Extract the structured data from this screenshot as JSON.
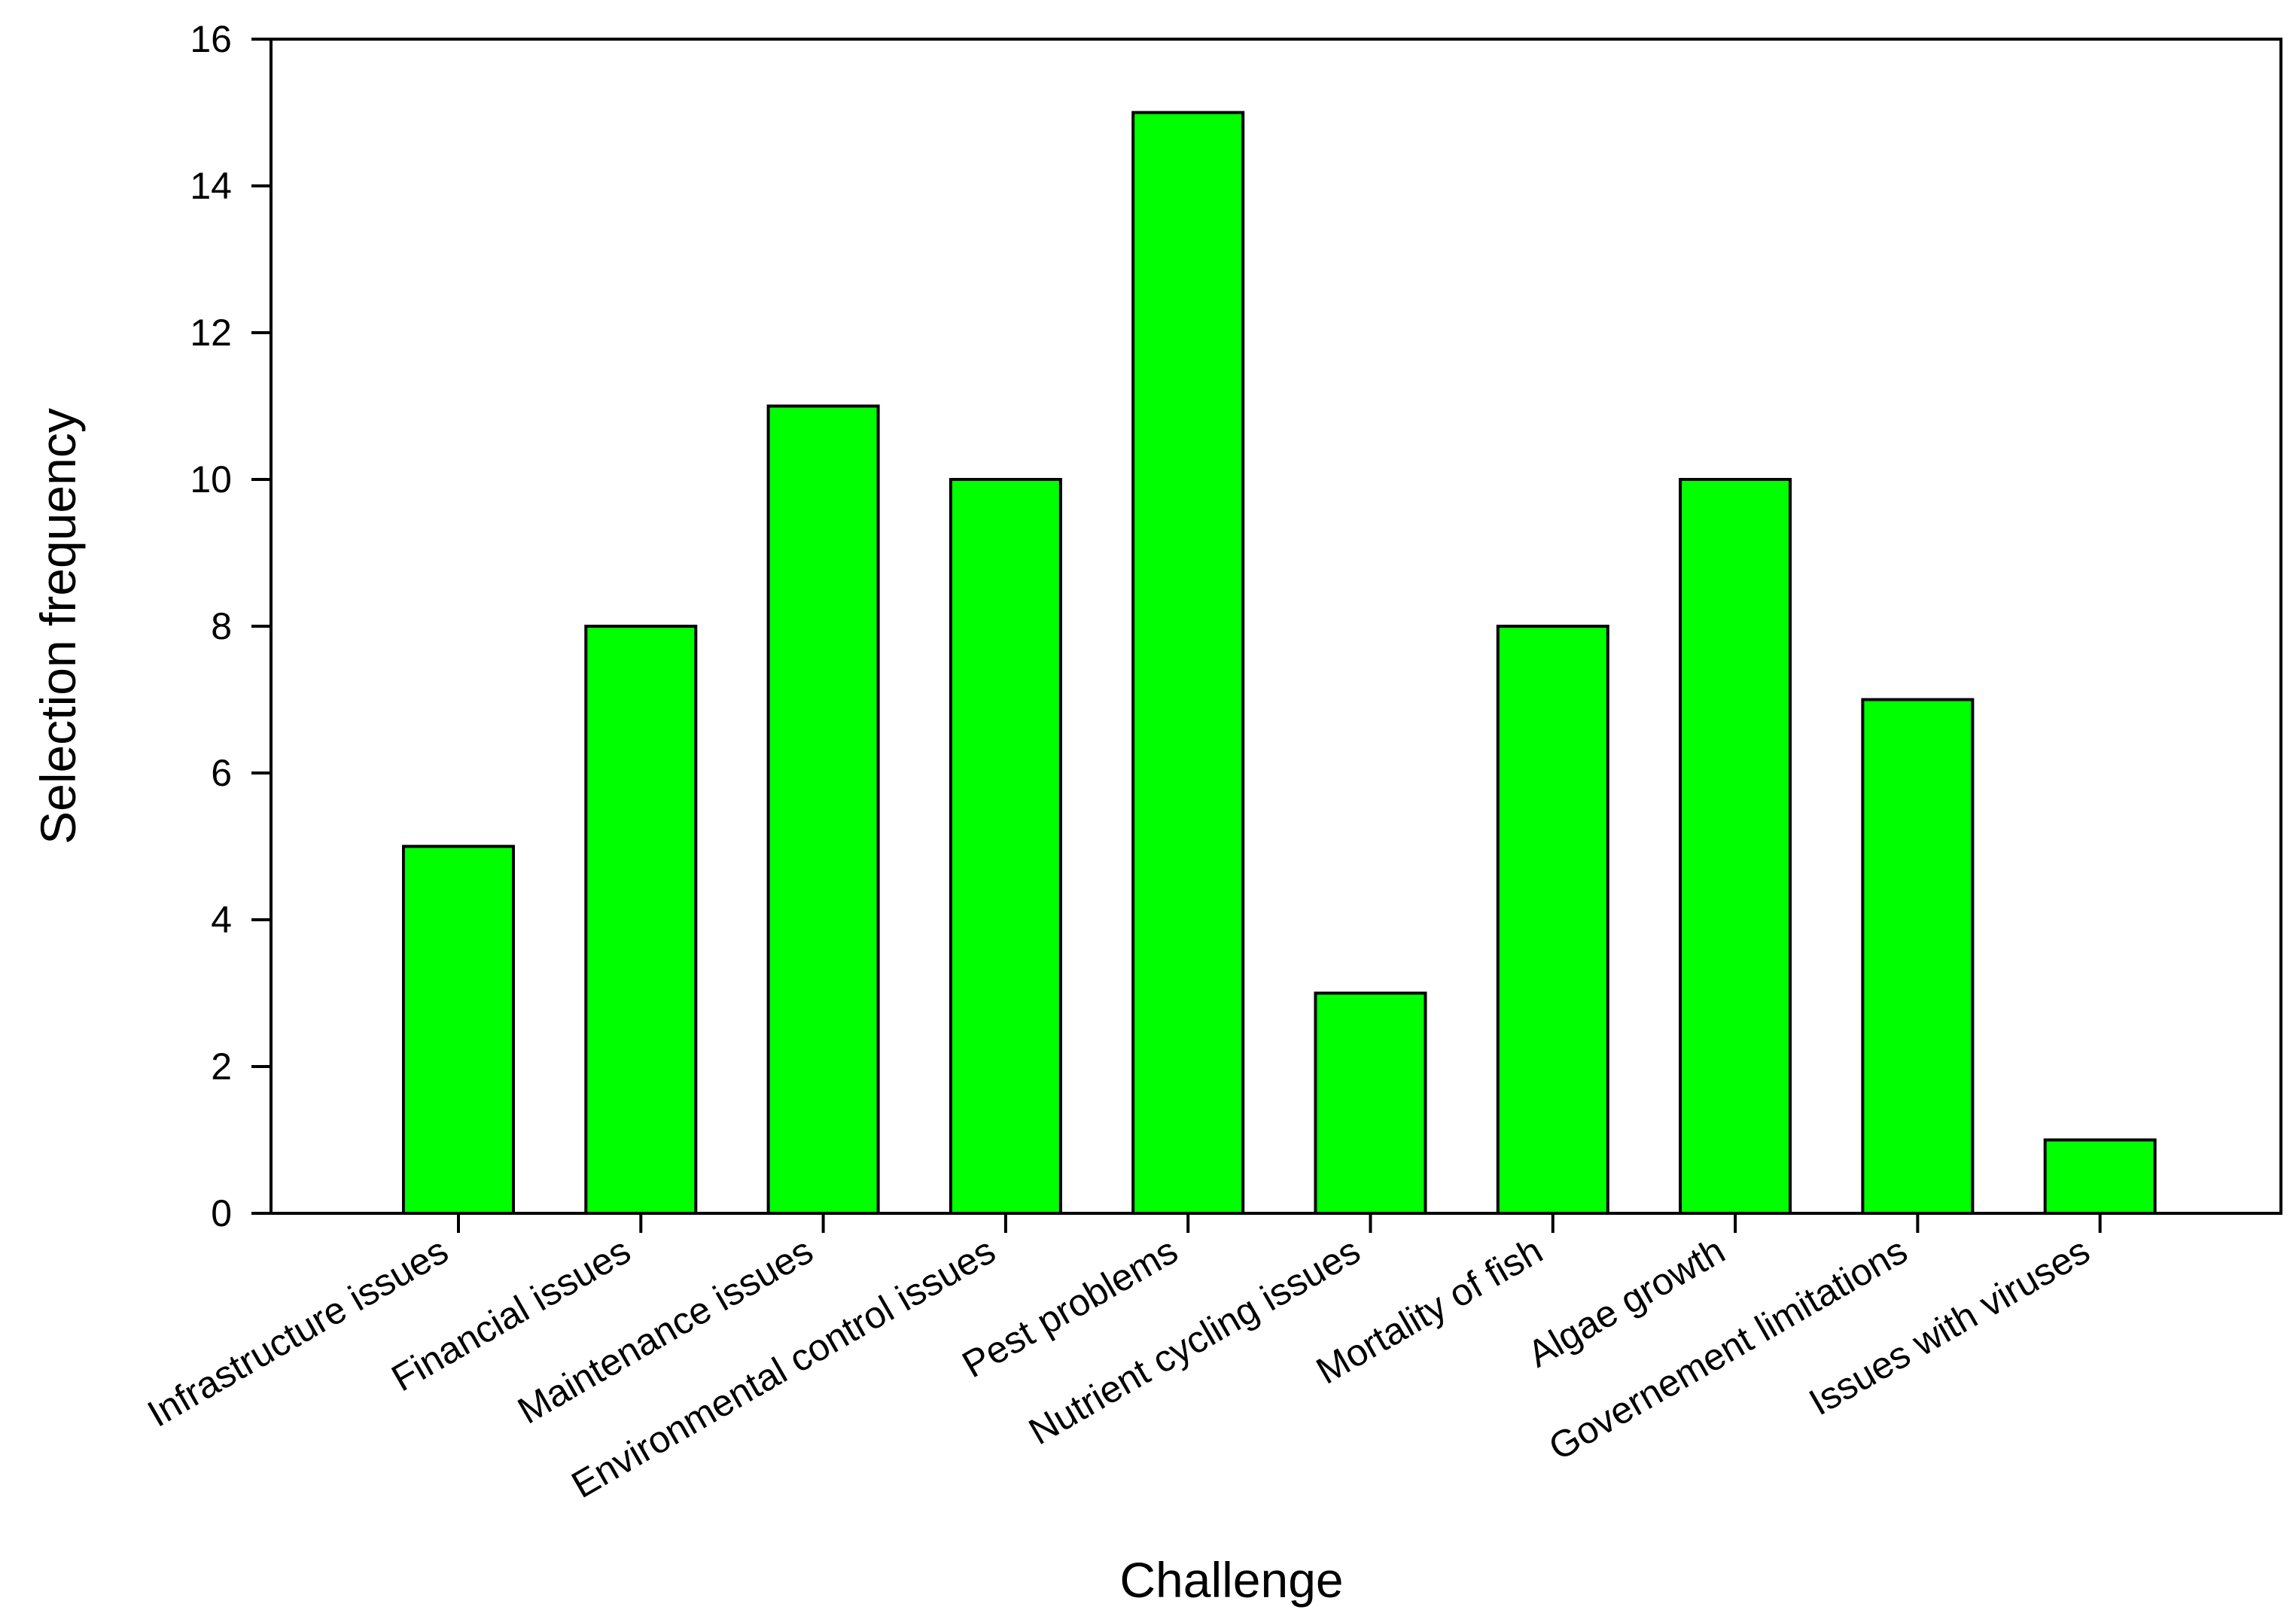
{
  "chart_data": {
    "type": "bar",
    "title": "",
    "xlabel": "Challenge",
    "ylabel": "Selection frequency",
    "categories": [
      "Infrastructure issues",
      "Financial issues",
      "Maintenance issues",
      "Environmental control issues",
      "Pest problems",
      "Nutrient cycling issues",
      "Mortality of fish",
      "Algae growth",
      "Governement limitations",
      "Issues with viruses"
    ],
    "values": [
      5,
      8,
      11,
      10,
      15,
      3,
      8,
      10,
      7,
      1
    ],
    "ylim": [
      0,
      16
    ],
    "yticks": [
      0,
      2,
      4,
      6,
      8,
      10,
      12,
      14,
      16
    ],
    "grid": false,
    "legend": "none",
    "bar_color": "#00ff00",
    "edge_color": "#000000"
  }
}
